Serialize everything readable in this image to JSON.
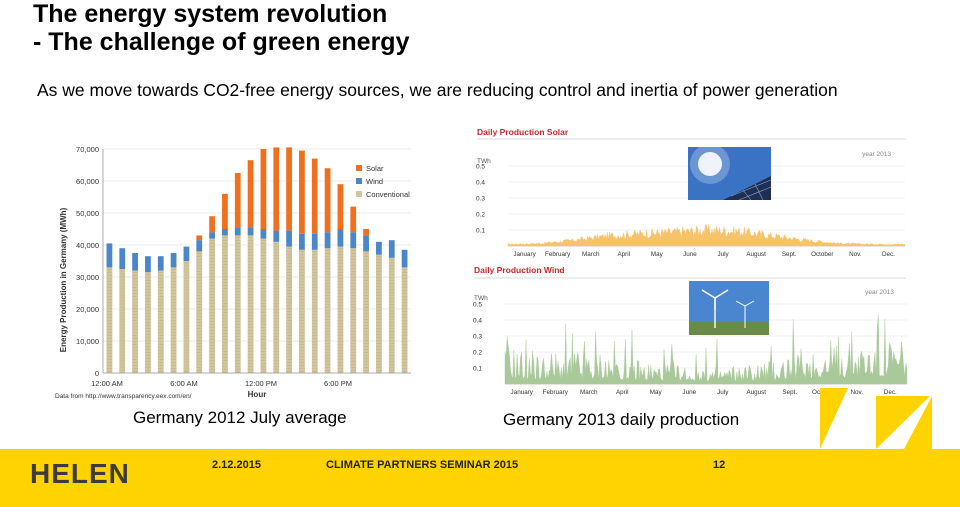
{
  "slide": {
    "title_line1": "The energy system revolution",
    "title_line2": "- The challenge of green energy",
    "subtitle": "As we move towards CO2-free energy sources, we are reducing control and inertia of power generation",
    "caption_left": "Germany 2012 July average",
    "caption_right": "Germany 2013 daily production"
  },
  "footer": {
    "logo": "HELEN",
    "date": "2.12.2015",
    "event": "CLIMATE PARTNERS SEMINAR 2015",
    "page": "12"
  },
  "colors": {
    "solar": "#f07020",
    "wind": "#4a86c8",
    "conventional": "#d2c59c",
    "daily_area": "#f5c46a",
    "wind_area": "#a9c99a",
    "footer": "#ffd300"
  },
  "chart_data": [
    {
      "type": "bar",
      "stacked": true,
      "ylabel": "Energy Production in Germany (MWh)",
      "xlabel": "Hour",
      "source": "Data from http://www.transparency.eex.com/en/",
      "yticks": [
        "0",
        "10,000",
        "20,000",
        "30,000",
        "40,000",
        "50,000",
        "60,000",
        "70,000"
      ],
      "ylim": [
        0,
        70000
      ],
      "xticks": [
        "12:00 AM",
        "6:00 AM",
        "12:00 PM",
        "6:00 PM"
      ],
      "legend_position": "top-right",
      "hours": [
        0,
        1,
        2,
        3,
        4,
        5,
        6,
        7,
        8,
        9,
        10,
        11,
        12,
        13,
        14,
        15,
        16,
        17,
        18,
        19,
        20,
        21,
        22,
        23
      ],
      "series": [
        {
          "name": "Conventional",
          "values": [
            33000,
            32500,
            32000,
            31500,
            32000,
            33000,
            35000,
            38000,
            42000,
            43000,
            43000,
            43000,
            42000,
            41000,
            39500,
            38500,
            38500,
            39000,
            39500,
            39000,
            38000,
            37000,
            36000,
            33000
          ]
        },
        {
          "name": "Wind",
          "values": [
            7500,
            6500,
            5500,
            5000,
            4500,
            4500,
            4500,
            3500,
            2000,
            2000,
            2500,
            2500,
            3000,
            3500,
            5000,
            5000,
            5000,
            5000,
            5500,
            5000,
            5000,
            4000,
            5500,
            5500
          ]
        },
        {
          "name": "Solar",
          "values": [
            0,
            0,
            0,
            0,
            0,
            0,
            0,
            1500,
            5000,
            11000,
            17000,
            21000,
            25000,
            26000,
            26000,
            26000,
            23500,
            20000,
            14000,
            8000,
            2000,
            0,
            0,
            0
          ]
        }
      ]
    },
    {
      "type": "area",
      "title": "Daily Production Solar",
      "unit": "TWh",
      "year_label": "year 2013",
      "yticks": [
        "0.5",
        "0.4",
        "0.3",
        "0.2",
        "0.1"
      ],
      "ylim": [
        0,
        0.55
      ],
      "months": [
        "January",
        "February",
        "March",
        "April",
        "May",
        "June",
        "July",
        "August",
        "Sept.",
        "October",
        "Nov.",
        "Dec."
      ],
      "monthly_level": [
        0.012,
        0.018,
        0.04,
        0.07,
        0.085,
        0.095,
        0.11,
        0.1,
        0.07,
        0.04,
        0.018,
        0.012
      ]
    },
    {
      "type": "area",
      "title": "Daily Production Wind",
      "unit": "TWh",
      "year_label": "year 2013",
      "yticks": [
        "0.5",
        "0.4",
        "0.3",
        "0.2",
        "0.1"
      ],
      "ylim": [
        0,
        0.55
      ],
      "months": [
        "January",
        "February",
        "March",
        "April",
        "May",
        "June",
        "July",
        "August",
        "Sept.",
        "October",
        "Nov.",
        "Dec."
      ],
      "monthly_level": [
        0.15,
        0.11,
        0.13,
        0.12,
        0.09,
        0.08,
        0.07,
        0.07,
        0.1,
        0.15,
        0.16,
        0.18
      ]
    }
  ]
}
